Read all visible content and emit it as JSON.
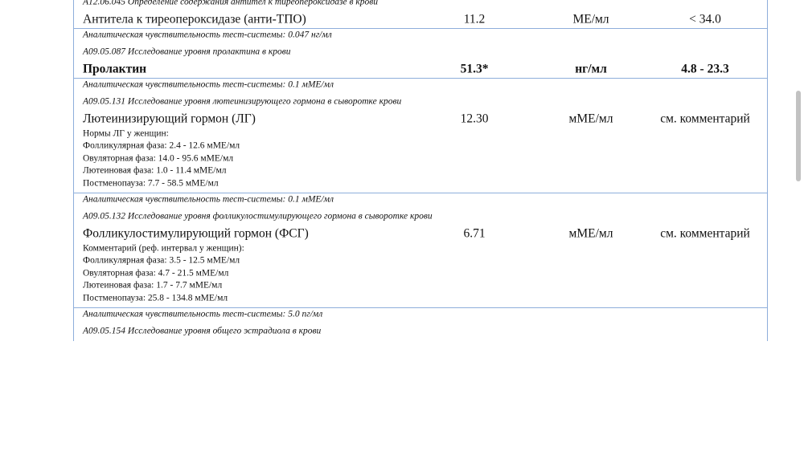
{
  "tests": [
    {
      "code": "A12.06.045 Определение содержания антител к тиреопероксидазе в крови",
      "name": "Антитела к тиреопероксидазе (анти-ТПО)",
      "value": "11.2",
      "units": "МЕ/мл",
      "reference": "< 34.0",
      "comments": [],
      "sensitivity": "Аналитическая чувствительность тест-системы: 0.047 нг/мл"
    },
    {
      "code": "A09.05.087 Исследование уровня пролактина в крови",
      "name": "Пролактин",
      "value": "51.3*",
      "units": "нг/мл",
      "reference": "4.8 - 23.3",
      "highlight": true,
      "comments": [],
      "sensitivity": "Аналитическая чувствительность тест-системы: 0.1 мМЕ/мл"
    },
    {
      "code": "A09.05.131 Исследование уровня лютеинизирующего гормона в сыворотке крови",
      "name": "Лютеинизирующий гормон (ЛГ)",
      "value": "12.30",
      "units": "мМЕ/мл",
      "reference": "см. комментарий",
      "comments": [
        "Нормы ЛГ у женщин:",
        "Фолликулярная фаза: 2.4 - 12.6 мМЕ/мл",
        "Овуляторная фаза: 14.0 - 95.6 мМЕ/мл",
        "Лютеиновая фаза: 1.0 - 11.4 мМЕ/мл",
        "Постменопауза: 7.7 - 58.5 мМЕ/мл"
      ],
      "sensitivity": "Аналитическая чувствительность тест-системы: 0.1 мМЕ/мл"
    },
    {
      "code": "A09.05.132 Исследование уровня фолликулостимулирующего гормона в сыворотке крови",
      "name": "Фолликулостимулирующий гормон (ФСГ)",
      "value": "6.71",
      "units": "мМЕ/мл",
      "reference": "см. комментарий",
      "comments": [
        "Комментарий (реф. интервал у женщин):",
        "Фолликулярная фаза: 3.5 - 12.5 мМЕ/мл",
        "Овуляторная фаза: 4.7 - 21.5 мМЕ/мл",
        "Лютеиновая фаза: 1.7 - 7.7 мМЕ/мл",
        "Постменопауза: 25.8 - 134.8 мМЕ/мл"
      ],
      "sensitivity": "Аналитическая чувствительность тест-системы: 5.0 пг/мл"
    },
    {
      "code": "A09.05.154 Исследование уровня общего эстрадиола в крови"
    }
  ]
}
